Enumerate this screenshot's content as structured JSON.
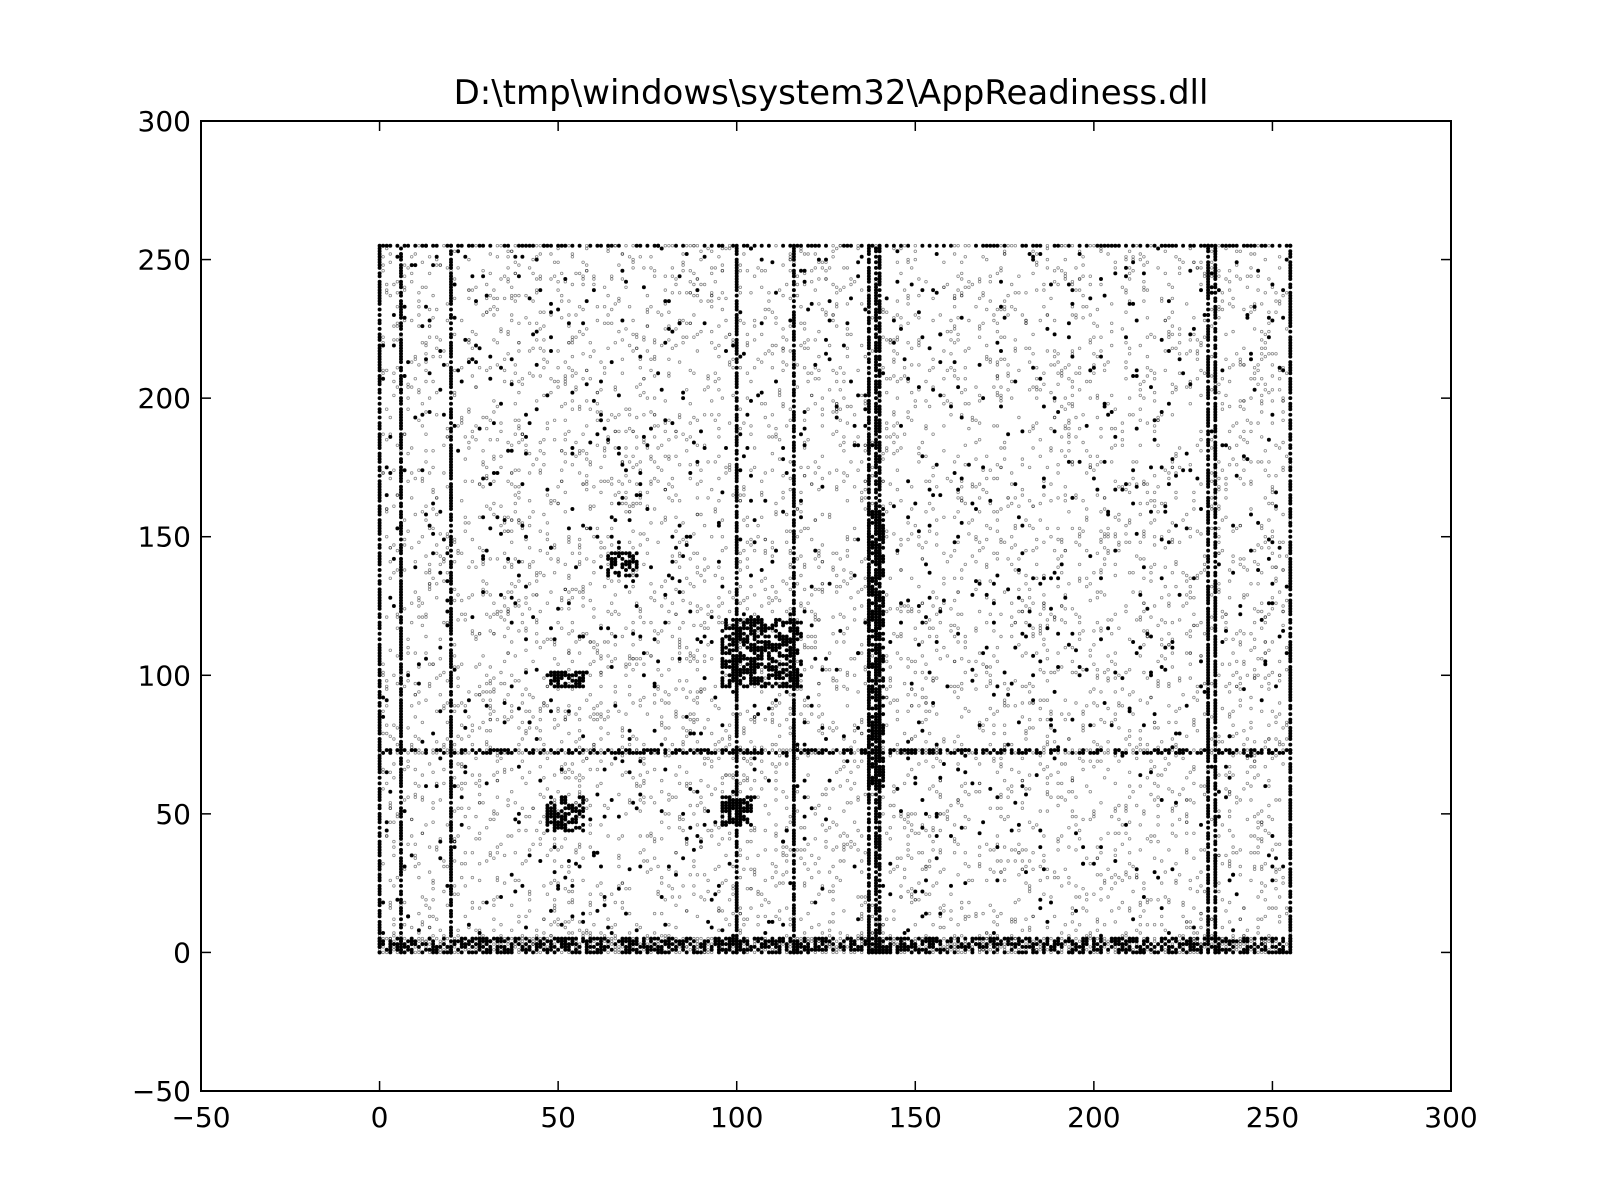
{
  "chart_data": {
    "type": "scatter",
    "title": "D:\\tmp\\windows\\system32\\AppReadiness.dll",
    "xlabel": "",
    "ylabel": "",
    "xlim": [
      -50,
      300
    ],
    "ylim": [
      -50,
      300
    ],
    "x_ticks": [
      -50,
      0,
      50,
      100,
      150,
      200,
      250,
      300
    ],
    "y_ticks": [
      -50,
      0,
      50,
      100,
      150,
      200,
      250,
      300
    ],
    "x_tick_labels": [
      "−50",
      "0",
      "50",
      "100",
      "150",
      "200",
      "250",
      "300"
    ],
    "y_tick_labels": [
      "−50",
      "0",
      "50",
      "100",
      "150",
      "200",
      "250",
      "300"
    ],
    "grid": false,
    "legend": "none",
    "marker_color": "#000000",
    "description_of_data": "byte-pair scatter (byte value vs next byte value)",
    "data_range": {
      "x": [
        0,
        255
      ],
      "y": [
        0,
        255
      ]
    },
    "dense_columns_x": [
      0,
      6,
      20,
      100,
      116,
      137,
      139,
      140,
      232,
      234,
      255
    ],
    "dense_rows_y": [
      0,
      1,
      2,
      3,
      4,
      5,
      72,
      73,
      255
    ],
    "dense_blocks": [
      {
        "x": [
          47,
          57
        ],
        "y": [
          44,
          56
        ]
      },
      {
        "x": [
          47,
          57
        ],
        "y": [
          96,
          101
        ]
      },
      {
        "x": [
          96,
          104
        ],
        "y": [
          46,
          56
        ]
      },
      {
        "x": [
          96,
          118
        ],
        "y": [
          96,
          120
        ]
      },
      {
        "x": [
          64,
          72
        ],
        "y": [
          136,
          144
        ]
      },
      {
        "x": [
          137,
          141
        ],
        "y": [
          60,
          160
        ]
      }
    ]
  }
}
